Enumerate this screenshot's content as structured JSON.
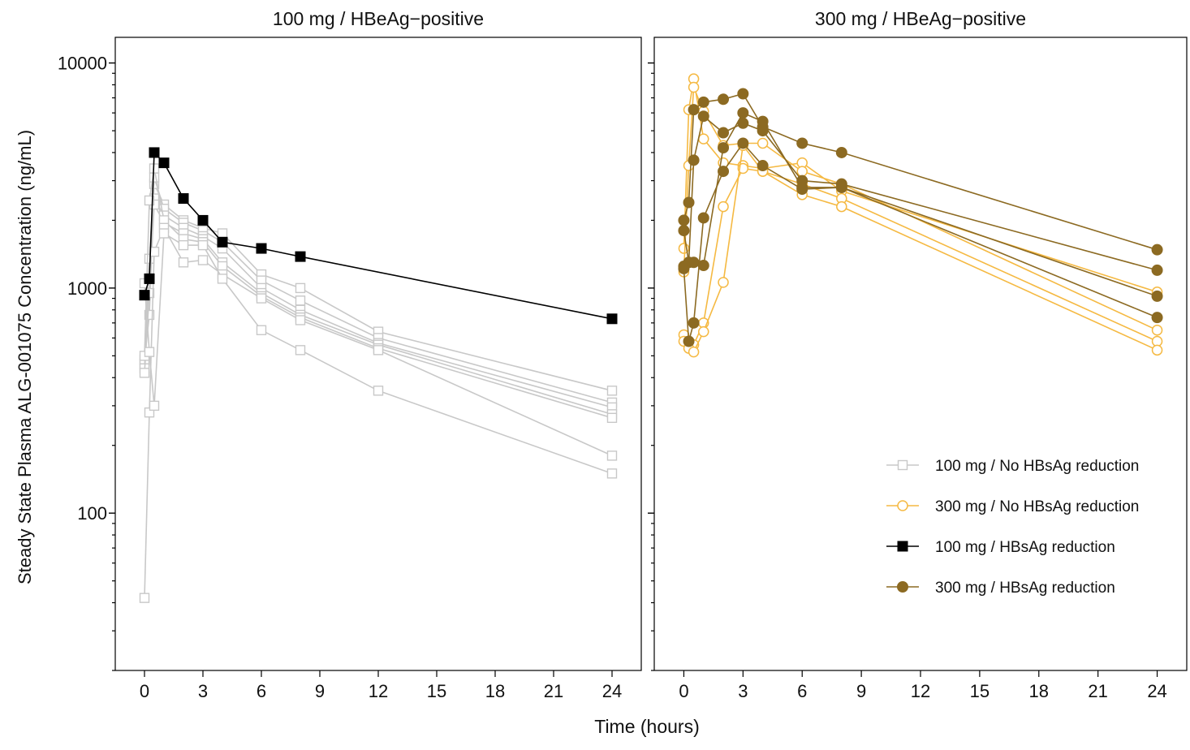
{
  "chart_data": {
    "type": "line",
    "ylabel": "Steady State Plasma ALG-001075 Concentration (ng/mL)",
    "xlabel": "Time (hours)",
    "yscale": "log",
    "ylim": [
      20,
      13000
    ],
    "xlim": [
      -1.5,
      25.5
    ],
    "xticks": [
      0,
      3,
      6,
      9,
      12,
      15,
      18,
      21,
      24
    ],
    "yticks": [
      100,
      1000,
      10000
    ],
    "ytick_labels": [
      "100",
      "1000",
      "10000"
    ],
    "legend_position": "bottom-right of right panel",
    "legend": [
      {
        "key": "no100",
        "label": "100 mg /  No HBsAg reduction",
        "color": "#c8c8c8",
        "marker": "open-square"
      },
      {
        "key": "no300",
        "label": "300 mg /  No HBsAg reduction",
        "color": "#f5b942",
        "marker": "open-circle"
      },
      {
        "key": "red100",
        "label": "100 mg /  HBsAg reduction",
        "color": "#000000",
        "marker": "filled-square"
      },
      {
        "key": "red300",
        "label": "300 mg /  HBsAg reduction",
        "color": "#8c6a22",
        "marker": "filled-circle"
      }
    ],
    "panels": [
      {
        "title": "100 mg / HBeAg−positive",
        "series": [
          {
            "group": "no100",
            "x": [
              0,
              0.25,
              0.5,
              1,
              2,
              3,
              4,
              6,
              8,
              12,
              24
            ],
            "y": [
              480,
              760,
              2900,
              2350,
              2000,
              1850,
              1750,
              1150,
              1000,
              640,
              350
            ]
          },
          {
            "group": "no100",
            "x": [
              0,
              0.25,
              0.5,
              1,
              2,
              3,
              4,
              6,
              8,
              12,
              24
            ],
            "y": [
              460,
              1350,
              3100,
              2250,
              1950,
              1800,
              1600,
              1080,
              880,
              600,
              310
            ]
          },
          {
            "group": "no100",
            "x": [
              0,
              0.25,
              0.5,
              1,
              2,
              3,
              4,
              6,
              8,
              12,
              24
            ],
            "y": [
              440,
              1100,
              2500,
              2100,
              1850,
              1700,
              1500,
              1000,
              800,
              570,
              295
            ]
          },
          {
            "group": "no100",
            "x": [
              0,
              0.25,
              0.5,
              1,
              2,
              3,
              4,
              6,
              8,
              12,
              24
            ],
            "y": [
              420,
              950,
              2350,
              1950,
              1750,
              1650,
              1300,
              950,
              760,
              560,
              275
            ]
          },
          {
            "group": "no100",
            "x": [
              0,
              0.25,
              0.5,
              1,
              2,
              3,
              4,
              6,
              8,
              12,
              24
            ],
            "y": [
              500,
              2450,
              3400,
              2000,
              1650,
              1600,
              1250,
              920,
              740,
              540,
              265
            ]
          },
          {
            "group": "no100",
            "x": [
              0,
              0.25,
              0.5,
              1,
              2,
              3,
              4,
              6,
              8,
              12,
              24
            ],
            "y": [
              42,
              280,
              1450,
              1850,
              1300,
              1330,
              1150,
              900,
              720,
              530,
              180
            ]
          },
          {
            "group": "no100",
            "x": [
              0,
              0.25,
              0.5,
              1,
              2,
              3,
              4,
              6,
              8,
              12,
              24
            ],
            "y": [
              1050,
              520,
              300,
              1750,
              1550,
              1550,
              1100,
              650,
              530,
              350,
              150
            ]
          },
          {
            "group": "red100",
            "x": [
              0,
              0.25,
              0.5,
              1,
              2,
              3,
              4,
              6,
              8,
              24
            ],
            "y": [
              930,
              1100,
              4000,
              3600,
              2500,
              2000,
              1600,
              1500,
              1380,
              730
            ]
          }
        ]
      },
      {
        "title": "300 mg / HBeAg−positive",
        "series": [
          {
            "group": "no300",
            "x": [
              0,
              0.25,
              0.5,
              1,
              2,
              3,
              4,
              6,
              8,
              24
            ],
            "y": [
              1500,
              6200,
              8500,
              4600,
              3600,
              3500,
              3400,
              3600,
              2700,
              960
            ]
          },
          {
            "group": "no300",
            "x": [
              0,
              0.25,
              0.5,
              1,
              2,
              3,
              4,
              6,
              8,
              24
            ],
            "y": [
              1180,
              3500,
              7800,
              6100,
              4300,
              4400,
              4400,
              3300,
              2900,
              650
            ]
          },
          {
            "group": "no300",
            "x": [
              0,
              0.25,
              0.5,
              1,
              2,
              3,
              4,
              6,
              8,
              24
            ],
            "y": [
              620,
              560,
              560,
              700,
              2300,
              3400,
              3300,
              2900,
              2500,
              580
            ]
          },
          {
            "group": "no300",
            "x": [
              0,
              0.25,
              0.5,
              1,
              2,
              3,
              4,
              6,
              8,
              24
            ],
            "y": [
              580,
              540,
              520,
              640,
              1060,
              4300,
              3300,
              2600,
              2300,
              530
            ]
          },
          {
            "group": "red300",
            "x": [
              0,
              0.25,
              0.5,
              1,
              2,
              3,
              4,
              6,
              8,
              24
            ],
            "y": [
              2000,
              2400,
              6200,
              6700,
              6900,
              7300,
              5200,
              4400,
              4000,
              1480
            ]
          },
          {
            "group": "red300",
            "x": [
              0,
              0.25,
              0.5,
              1,
              2,
              3,
              4,
              6,
              8,
              24
            ],
            "y": [
              1800,
              1300,
              3700,
              5800,
              4900,
              5400,
              5000,
              3000,
              2900,
              1200
            ]
          },
          {
            "group": "red300",
            "x": [
              0,
              0.25,
              0.5,
              1,
              2,
              3,
              4,
              6,
              8,
              24
            ],
            "y": [
              1250,
              1300,
              1300,
              1260,
              4200,
              6000,
              5500,
              2800,
              2800,
              920
            ]
          },
          {
            "group": "red300",
            "x": [
              0,
              0.25,
              0.5,
              1,
              2,
              3,
              4,
              6,
              8,
              24
            ],
            "y": [
              1220,
              580,
              700,
              2050,
              3300,
              4400,
              3500,
              2750,
              2800,
              740
            ]
          }
        ]
      }
    ]
  }
}
